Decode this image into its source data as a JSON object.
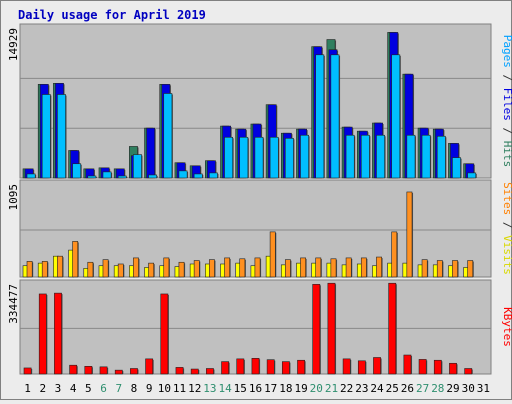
{
  "chart_data": {
    "type": "bar",
    "title": "Daily usage for April 2019",
    "categories": [
      "1",
      "2",
      "3",
      "4",
      "5",
      "6",
      "7",
      "8",
      "9",
      "10",
      "11",
      "12",
      "13",
      "14",
      "15",
      "16",
      "17",
      "18",
      "19",
      "20",
      "21",
      "22",
      "23",
      "24",
      "25",
      "26",
      "27",
      "28",
      "29",
      "30",
      "31"
    ],
    "weekend_days": [
      "6",
      "7",
      "13",
      "14",
      "20",
      "21",
      "27",
      "28"
    ],
    "panels": [
      {
        "name": "hits-files-pages",
        "max_label": "14929",
        "ylim": [
          0,
          14929
        ],
        "side_label_parts": [
          {
            "text": "Pages",
            "color": "#00a0ff"
          },
          {
            "text": " / ",
            "color": "#333333"
          },
          {
            "text": "Files",
            "color": "#0000e0"
          },
          {
            "text": " / ",
            "color": "#333333"
          },
          {
            "text": "Hits",
            "color": "#2f7f5f"
          }
        ],
        "series": [
          {
            "name": "Hits",
            "color": "#2f7f5f",
            "values": [
              900,
              9200,
              9300,
              2700,
              900,
              1000,
              900,
              3100,
              4900,
              9200,
              1500,
              1200,
              1700,
              5100,
              4800,
              5300,
              7200,
              4400,
              4800,
              12900,
              13600,
              5000,
              4600,
              5400,
              14300,
              10200,
              4900,
              4800,
              3400,
              1400,
              0
            ]
          },
          {
            "name": "Files",
            "color": "#0000e0",
            "values": [
              900,
              9200,
              9300,
              2700,
              900,
              1000,
              900,
              2200,
              4900,
              9200,
              1500,
              1200,
              1700,
              5100,
              4800,
              5300,
              7200,
              4400,
              4800,
              12900,
              12600,
              5000,
              4600,
              5400,
              14300,
              10200,
              4900,
              4800,
              3400,
              1400,
              0
            ]
          },
          {
            "name": "Pages",
            "color": "#00bfff",
            "values": [
              400,
              8200,
              8200,
              1400,
              200,
              600,
              200,
              2300,
              300,
              8300,
              700,
              400,
              500,
              4000,
              4000,
              4000,
              4000,
              3900,
              4200,
              12100,
              12100,
              4200,
              4200,
              4200,
              12100,
              4200,
              4200,
              4100,
              2000,
              500,
              0
            ]
          }
        ]
      },
      {
        "name": "visits-sites",
        "max_label": "1095",
        "ylim": [
          0,
          1095
        ],
        "side_label_parts": [
          {
            "text": "Sites",
            "color": "#ff8000"
          },
          {
            "text": " / ",
            "color": "#333333"
          },
          {
            "text": "Visits",
            "color": "#d8d800"
          }
        ],
        "series": [
          {
            "name": "Visits",
            "color": "#ffff00",
            "values": [
              130,
              160,
              240,
              310,
              100,
              130,
              130,
              130,
              110,
              130,
              120,
              150,
              150,
              150,
              160,
              130,
              240,
              140,
              160,
              160,
              160,
              140,
              150,
              130,
              160,
              160,
              140,
              140,
              130,
              110,
              0
            ]
          },
          {
            "name": "Sites",
            "color": "#ff9020",
            "values": [
              180,
              180,
              240,
              410,
              170,
              200,
              150,
              220,
              160,
              220,
              170,
              190,
              200,
              220,
              210,
              220,
              520,
              200,
              220,
              220,
              210,
              220,
              220,
              230,
              520,
              980,
              200,
              190,
              190,
              190,
              0
            ]
          }
        ]
      },
      {
        "name": "kbytes",
        "max_label": "334477",
        "ylim": [
          0,
          334477
        ],
        "side_label_parts": [
          {
            "text": "KBytes",
            "color": "#ff0000"
          }
        ],
        "series": [
          {
            "name": "KBytes",
            "color": "#ff0000",
            "values": [
              22000,
              291000,
              294000,
              32000,
              28000,
              26000,
              14000,
              20000,
              55000,
              291000,
              24000,
              18000,
              20000,
              45000,
              55000,
              57000,
              52000,
              45000,
              50000,
              326000,
              330000,
              55000,
              48000,
              60000,
              330000,
              69000,
              53000,
              50000,
              39000,
              20000,
              0
            ]
          }
        ]
      }
    ]
  }
}
